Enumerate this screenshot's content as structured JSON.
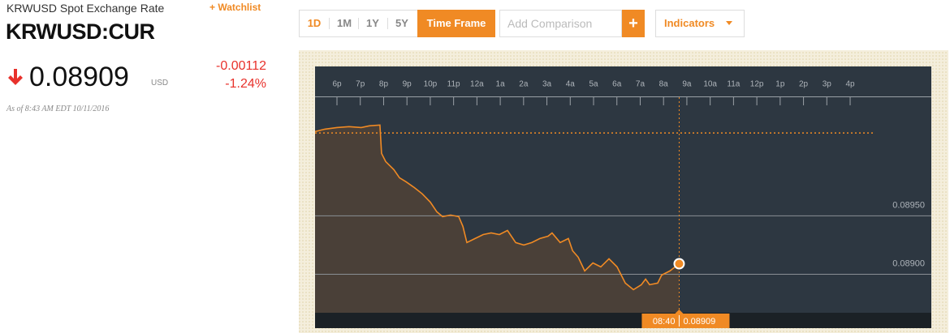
{
  "header": {
    "subtitle": "KRWUSD Spot Exchange Rate",
    "watchlist": "+ Watchlist",
    "ticker": "KRWUSD:CUR",
    "price": "0.08909",
    "currency": "USD",
    "change": "-0.00112",
    "change_pct": "-1.24%",
    "timestamp": "As of 8:43 AM EDT 10/11/2016"
  },
  "toolbar": {
    "ranges": [
      "1D",
      "1M",
      "1Y",
      "5Y"
    ],
    "time_frame": "Time Frame",
    "comparison_placeholder": "Add Comparison",
    "add": "+",
    "indicators": "Indicators"
  },
  "chart_data": {
    "type": "line",
    "color": "#f08a24",
    "x": [
      17.06,
      17.48,
      18.0,
      18.52,
      19.04,
      19.39,
      19.84,
      19.91,
      20.09,
      20.44,
      20.68,
      20.96,
      21.31,
      21.66,
      22.0,
      22.28,
      22.53,
      22.87,
      23.22,
      23.4,
      23.57,
      23.92,
      24.27,
      24.61,
      24.96,
      25.31,
      25.66,
      26.01,
      26.35,
      26.7,
      27.05,
      27.22,
      27.57,
      27.92,
      28.1,
      28.34,
      28.62,
      28.97,
      29.31,
      29.66,
      30.01,
      30.36,
      30.71,
      31.05,
      31.23,
      31.4,
      31.75,
      31.92,
      32.27,
      32.67
    ],
    "values": [
      0.090222,
      0.090243,
      0.090257,
      0.090264,
      0.090257,
      0.090271,
      0.090278,
      0.090035,
      0.089965,
      0.089896,
      0.089826,
      0.089792,
      0.089743,
      0.089688,
      0.089618,
      0.089535,
      0.089493,
      0.089507,
      0.089493,
      0.08941,
      0.089271,
      0.089306,
      0.08934,
      0.089354,
      0.08934,
      0.089375,
      0.089271,
      0.08925,
      0.089271,
      0.089306,
      0.089326,
      0.089354,
      0.089271,
      0.089306,
      0.089201,
      0.089146,
      0.089028,
      0.089097,
      0.089063,
      0.089132,
      0.089063,
      0.088924,
      0.088868,
      0.08891,
      0.088958,
      0.08891,
      0.088924,
      0.088993,
      0.089028,
      0.08909
    ],
    "previous_close": 0.09021,
    "cursor": {
      "x": 32.67,
      "x_label": "08:40",
      "value": 0.08909
    },
    "xlim": [
      17.06,
      43.48
    ],
    "ylim": [
      0.08867,
      0.09078
    ],
    "xticks": [
      {
        "value": 18,
        "label": "6p"
      },
      {
        "value": 19,
        "label": "7p"
      },
      {
        "value": 20,
        "label": "8p"
      },
      {
        "value": 21,
        "label": "9p"
      },
      {
        "value": 22,
        "label": "10p"
      },
      {
        "value": 23,
        "label": "11p"
      },
      {
        "value": 24,
        "label": "12a"
      },
      {
        "value": 25,
        "label": "1a"
      },
      {
        "value": 26,
        "label": "2a"
      },
      {
        "value": 27,
        "label": "3a"
      },
      {
        "value": 28,
        "label": "4a"
      },
      {
        "value": 29,
        "label": "5a"
      },
      {
        "value": 30,
        "label": "6a"
      },
      {
        "value": 31,
        "label": "7a"
      },
      {
        "value": 32,
        "label": "8a"
      },
      {
        "value": 33,
        "label": "9a"
      },
      {
        "value": 34,
        "label": "10a"
      },
      {
        "value": 35,
        "label": "11a"
      },
      {
        "value": 36,
        "label": "12p"
      },
      {
        "value": 37,
        "label": "1p"
      },
      {
        "value": 38,
        "label": "2p"
      },
      {
        "value": 39,
        "label": "3p"
      },
      {
        "value": 40,
        "label": "4p"
      }
    ],
    "yticks": [
      {
        "value": 0.0895,
        "label": "0.08950"
      },
      {
        "value": 0.089,
        "label": "0.08900"
      }
    ],
    "grid": true
  }
}
